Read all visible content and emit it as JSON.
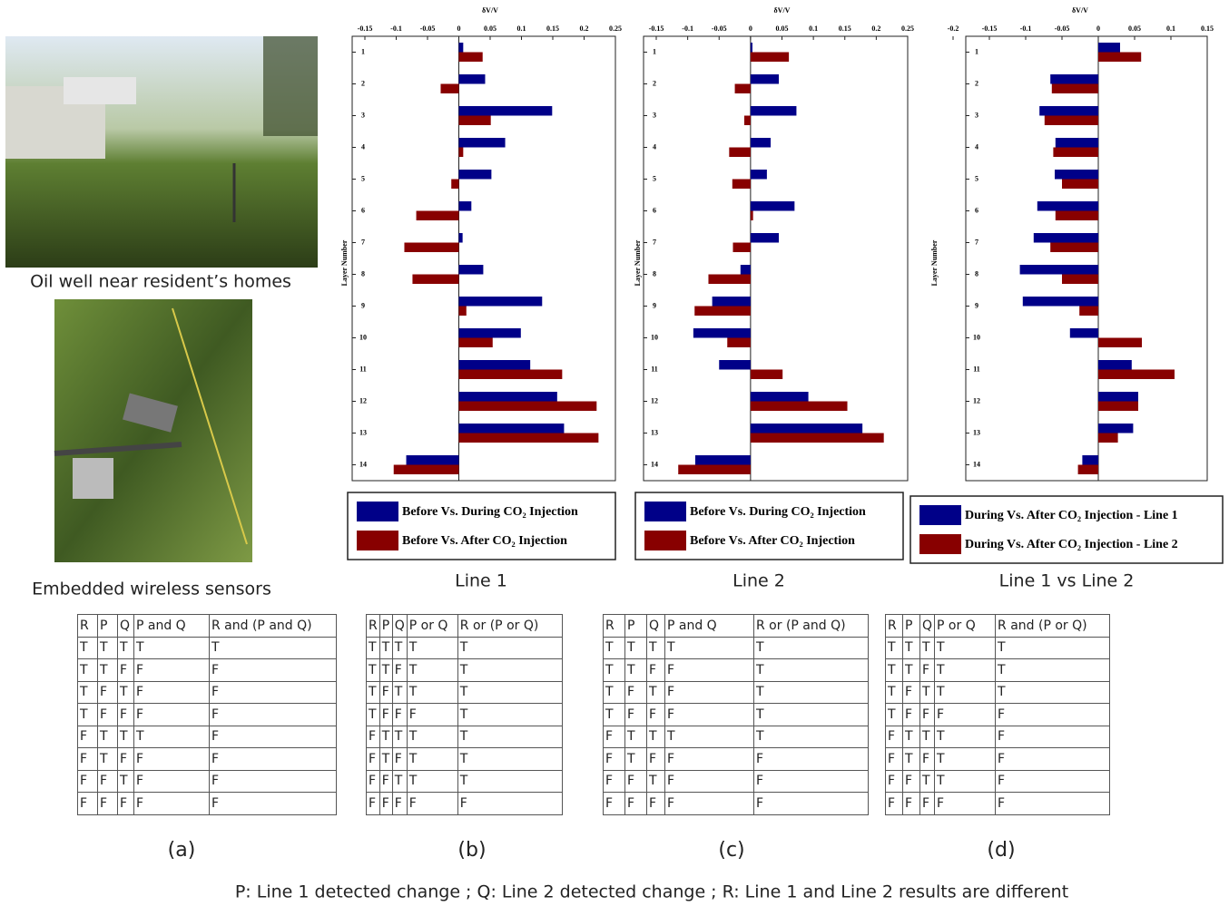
{
  "photos": [
    {
      "caption": "Oil well near resident’s homes"
    },
    {
      "caption": "Embedded wireless sensors"
    }
  ],
  "chart_data": [
    {
      "type": "bar",
      "orientation": "horizontal",
      "xlabel": "δV/V",
      "ylabel": "Layer Number",
      "caption": "Line 1",
      "categories": [
        "1",
        "2",
        "3",
        "4",
        "5",
        "6",
        "7",
        "8",
        "9",
        "10",
        "11",
        "12",
        "13",
        "14"
      ],
      "xlim": [
        -0.15,
        0.25
      ],
      "xticks": [
        -0.15,
        -0.1,
        -0.05,
        0,
        0.05,
        0.1,
        0.15,
        0.2,
        0.25
      ],
      "series": [
        {
          "name": "Before Vs. During CO₂ Injection",
          "color": "#000088",
          "values": [
            0.007,
            0.042,
            0.149,
            0.074,
            0.052,
            0.02,
            0.006,
            0.039,
            0.133,
            0.099,
            0.114,
            0.157,
            0.168,
            -0.084
          ]
        },
        {
          "name": "Before Vs. After CO₂ Injection",
          "color": "#880000",
          "values": [
            0.038,
            -0.029,
            0.051,
            0.007,
            -0.012,
            -0.068,
            -0.087,
            -0.074,
            0.012,
            0.054,
            0.165,
            0.22,
            0.223,
            -0.104
          ]
        }
      ]
    },
    {
      "type": "bar",
      "orientation": "horizontal",
      "xlabel": "δV/V",
      "ylabel": "Layer Number",
      "caption": "Line 2",
      "categories": [
        "1",
        "2",
        "3",
        "4",
        "5",
        "6",
        "7",
        "8",
        "9",
        "10",
        "11",
        "12",
        "13",
        "14"
      ],
      "xlim": [
        -0.15,
        0.25
      ],
      "xticks": [
        -0.15,
        -0.1,
        -0.05,
        0,
        0.05,
        0.1,
        0.15,
        0.2,
        0.25
      ],
      "series": [
        {
          "name": "Before Vs. During CO₂ Injection",
          "color": "#000088",
          "values": [
            0.003,
            0.045,
            0.073,
            0.032,
            0.026,
            0.07,
            0.045,
            -0.016,
            -0.061,
            -0.091,
            -0.05,
            0.092,
            0.178,
            -0.088
          ]
        },
        {
          "name": "Before Vs. After CO₂ Injection",
          "color": "#880000",
          "values": [
            0.061,
            -0.025,
            -0.01,
            -0.034,
            -0.029,
            0.004,
            -0.028,
            -0.067,
            -0.089,
            -0.037,
            0.051,
            0.154,
            0.212,
            -0.115
          ]
        }
      ]
    },
    {
      "type": "bar",
      "orientation": "horizontal",
      "xlabel": "δV/V",
      "ylabel": "Layer Number",
      "caption": "Line 1 vs Line 2",
      "categories": [
        "1",
        "2",
        "3",
        "4",
        "5",
        "6",
        "7",
        "8",
        "9",
        "10",
        "11",
        "12",
        "13",
        "14"
      ],
      "xlim": [
        -0.2,
        0.15
      ],
      "xticks": [
        -0.2,
        -0.15,
        -0.1,
        -0.05,
        0,
        0.05,
        0.1,
        0.15
      ],
      "series": [
        {
          "name": "During Vs. After CO₂ Injection - Line 1",
          "color": "#000088",
          "values": [
            0.03,
            -0.066,
            -0.081,
            -0.059,
            -0.06,
            -0.084,
            -0.089,
            -0.108,
            -0.104,
            -0.039,
            0.046,
            0.055,
            0.048,
            -0.022
          ]
        },
        {
          "name": "During Vs. After CO₂ Injection - Line 2",
          "color": "#880000",
          "values": [
            0.059,
            -0.064,
            -0.074,
            -0.062,
            -0.05,
            -0.059,
            -0.066,
            -0.05,
            -0.026,
            0.06,
            0.105,
            0.055,
            0.027,
            -0.028
          ]
        }
      ]
    }
  ],
  "tables": [
    {
      "label": "(a)",
      "header": [
        "R",
        "P",
        "Q",
        "P and Q",
        "R and (P and Q)"
      ],
      "rows": [
        [
          "T",
          "T",
          "T",
          "T",
          "T"
        ],
        [
          "T",
          "T",
          "F",
          "F",
          "F"
        ],
        [
          "T",
          "F",
          "T",
          "F",
          "F"
        ],
        [
          "T",
          "F",
          "F",
          "F",
          "F"
        ],
        [
          "F",
          "T",
          "T",
          "T",
          "F"
        ],
        [
          "F",
          "T",
          "F",
          "F",
          "F"
        ],
        [
          "F",
          "F",
          "T",
          "F",
          "F"
        ],
        [
          "F",
          "F",
          "F",
          "F",
          "F"
        ]
      ]
    },
    {
      "label": "(b)",
      "header": [
        "R",
        "P",
        "Q",
        "P or Q",
        "R or (P or Q)"
      ],
      "rows": [
        [
          "T",
          "T",
          "T",
          "T",
          "T"
        ],
        [
          "T",
          "T",
          "F",
          "T",
          "T"
        ],
        [
          "T",
          "F",
          "T",
          "T",
          "T"
        ],
        [
          "T",
          "F",
          "F",
          "F",
          "T"
        ],
        [
          "F",
          "T",
          "T",
          "T",
          "T"
        ],
        [
          "F",
          "T",
          "F",
          "T",
          "T"
        ],
        [
          "F",
          "F",
          "T",
          "T",
          "T"
        ],
        [
          "F",
          "F",
          "F",
          "F",
          "F"
        ]
      ]
    },
    {
      "label": "(c)",
      "header": [
        "R",
        "P",
        "Q",
        "P and Q",
        "R or (P and Q)"
      ],
      "rows": [
        [
          "T",
          "T",
          "T",
          "T",
          "T"
        ],
        [
          "T",
          "T",
          "F",
          "F",
          "T"
        ],
        [
          "T",
          "F",
          "T",
          "F",
          "T"
        ],
        [
          "T",
          "F",
          "F",
          "F",
          "T"
        ],
        [
          "F",
          "T",
          "T",
          "T",
          "T"
        ],
        [
          "F",
          "T",
          "F",
          "F",
          "F"
        ],
        [
          "F",
          "F",
          "T",
          "F",
          "F"
        ],
        [
          "F",
          "F",
          "F",
          "F",
          "F"
        ]
      ]
    },
    {
      "label": "(d)",
      "header": [
        "R",
        "P",
        "Q",
        "P or Q",
        "R and (P or Q)"
      ],
      "rows": [
        [
          "T",
          "T",
          "T",
          "T",
          "T"
        ],
        [
          "T",
          "T",
          "F",
          "T",
          "T"
        ],
        [
          "T",
          "F",
          "T",
          "T",
          "T"
        ],
        [
          "T",
          "F",
          "F",
          "F",
          "F"
        ],
        [
          "F",
          "T",
          "T",
          "T",
          "F"
        ],
        [
          "F",
          "T",
          "F",
          "T",
          "F"
        ],
        [
          "F",
          "F",
          "T",
          "T",
          "F"
        ],
        [
          "F",
          "F",
          "F",
          "F",
          "F"
        ]
      ]
    }
  ],
  "footnote": "P: Line 1 detected change ; Q: Line 2 detected change ; R: Line 1 and Line 2 results are different"
}
